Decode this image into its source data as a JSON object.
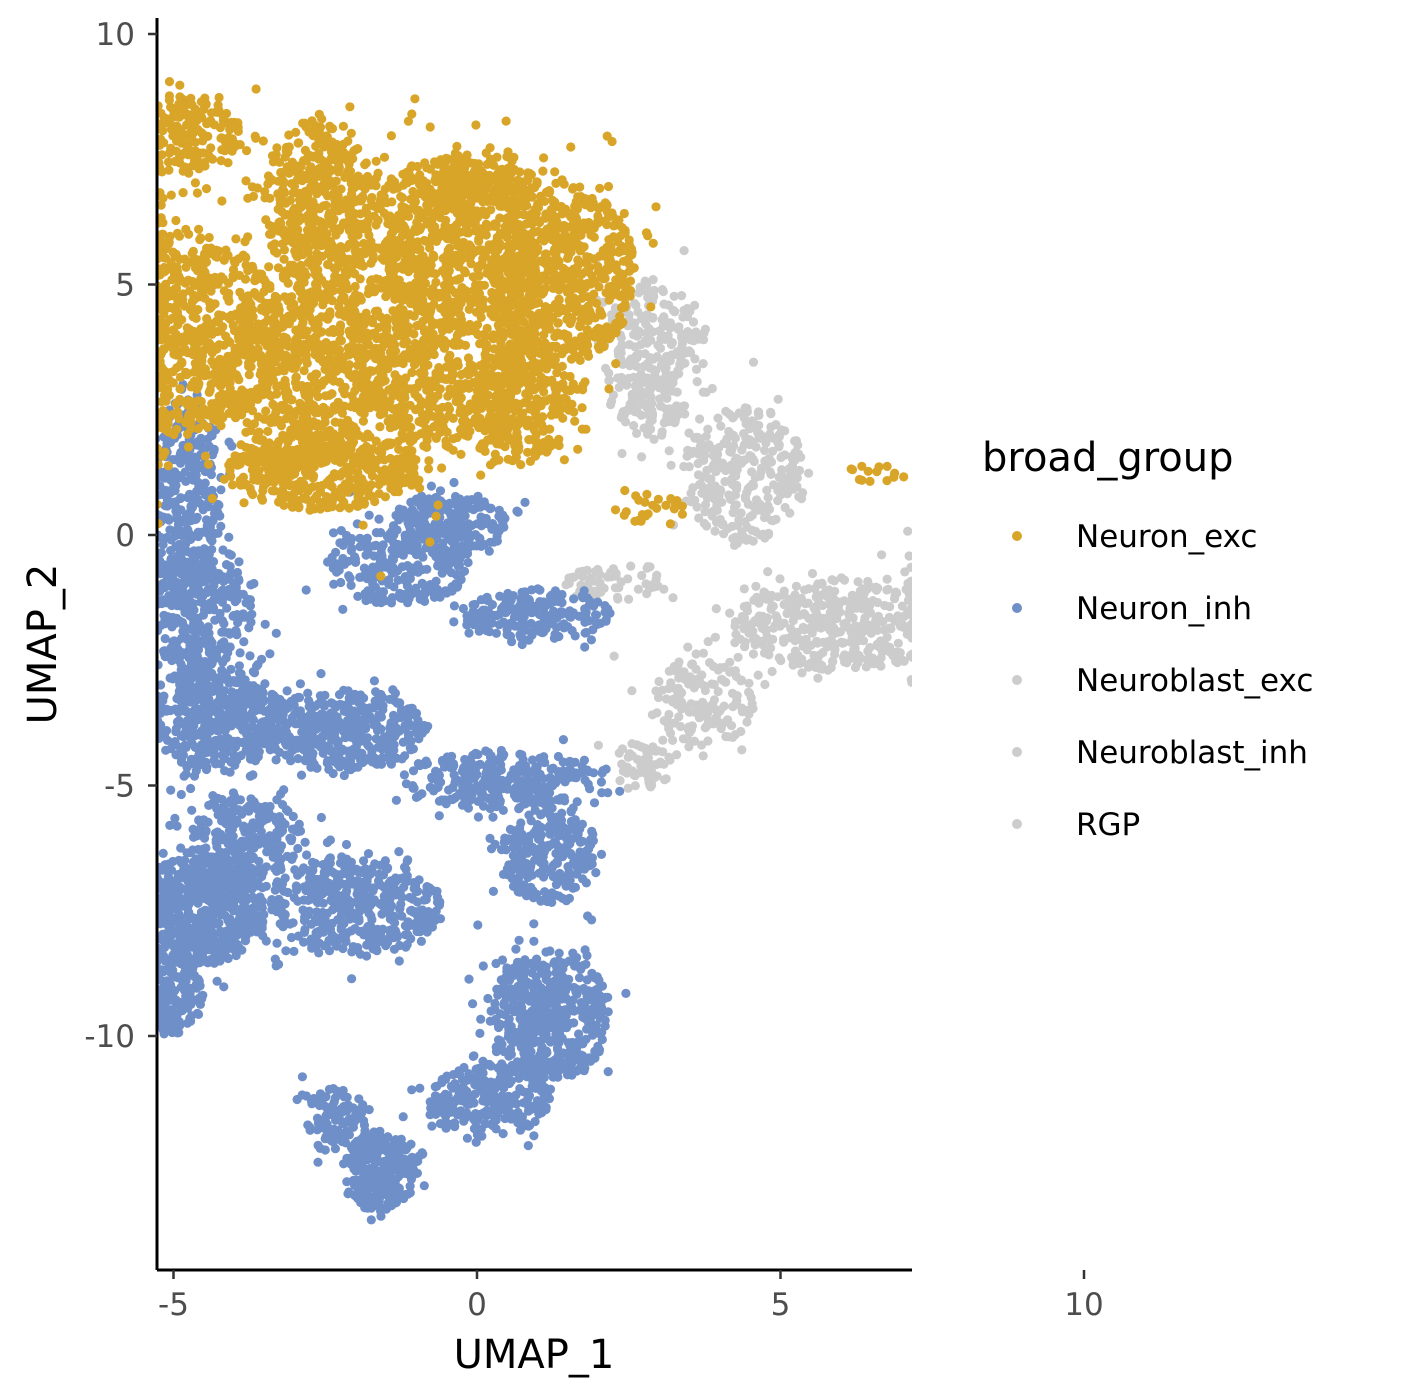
{
  "chart_data": {
    "type": "scatter",
    "title": "",
    "xlabel": "UMAP_1",
    "ylabel": "UMAP_2",
    "xlim": [
      -10.5,
      14.2
    ],
    "ylim": [
      -14.6,
      10.3
    ],
    "x_ticks": [
      -10,
      -5,
      0,
      5,
      10
    ],
    "y_ticks": [
      -10,
      -5,
      0,
      5,
      10
    ],
    "x_tick_labels": [
      "-10",
      "-5",
      "0",
      "5",
      "10"
    ],
    "y_tick_labels": [
      "-10",
      "-5",
      "0",
      "5",
      "10"
    ],
    "grid": false,
    "legend": {
      "title": "broad_group",
      "placement": "right",
      "entries": [
        {
          "name": "Neuron_exc",
          "color": "#D8A528"
        },
        {
          "name": "Neuron_inh",
          "color": "#6F8FC8"
        },
        {
          "name": "Neuroblast_exc",
          "color": "#CCCCCC"
        },
        {
          "name": "Neuroblast_inh",
          "color": "#CCCCCC"
        },
        {
          "name": "RGP",
          "color": "#CCCCCC"
        }
      ]
    },
    "series": [
      {
        "name": "Neuron_exc",
        "color": "#D8A528",
        "regions": [
          {
            "cx": -7.5,
            "cy": 5.5,
            "rx": 2.4,
            "ry": 2.9,
            "n": 1900
          },
          {
            "cx": -4.8,
            "cy": 4.0,
            "rx": 1.6,
            "ry": 2.0,
            "n": 800
          },
          {
            "cx": -2.6,
            "cy": 6.5,
            "rx": 0.9,
            "ry": 1.9,
            "n": 450
          },
          {
            "cx": -2.8,
            "cy": 3.2,
            "rx": 1.3,
            "ry": 1.7,
            "n": 600
          },
          {
            "cx": -0.6,
            "cy": 4.6,
            "rx": 1.6,
            "ry": 2.9,
            "n": 1200
          },
          {
            "cx": 1.4,
            "cy": 5.2,
            "rx": 1.2,
            "ry": 1.8,
            "n": 650
          },
          {
            "cx": 0.7,
            "cy": 2.6,
            "rx": 1.0,
            "ry": 1.2,
            "n": 300
          },
          {
            "cx": -2.5,
            "cy": 1.3,
            "rx": 1.6,
            "ry": 0.8,
            "n": 400
          },
          {
            "cx": -6.1,
            "cy": 1.2,
            "rx": 0.7,
            "ry": 1.0,
            "n": 200
          },
          {
            "cx": -7.5,
            "cy": 7.3,
            "rx": 1.3,
            "ry": 0.9,
            "n": 300
          },
          {
            "cx": -4.8,
            "cy": 8.0,
            "rx": 0.9,
            "ry": 0.8,
            "n": 200
          },
          {
            "cx": 0.0,
            "cy": 7.0,
            "rx": 1.0,
            "ry": 0.6,
            "n": 200
          },
          {
            "cx": 2.8,
            "cy": 0.6,
            "rx": 0.7,
            "ry": 0.35,
            "n": 25
          },
          {
            "cx": 6.6,
            "cy": 1.25,
            "rx": 0.5,
            "ry": 0.2,
            "n": 14
          }
        ]
      },
      {
        "name": "Neuron_inh",
        "color": "#6F8FC8",
        "regions": [
          {
            "cx": -4.8,
            "cy": 0.8,
            "rx": 0.6,
            "ry": 2.0,
            "n": 350
          },
          {
            "cx": -4.6,
            "cy": -1.5,
            "rx": 0.9,
            "ry": 1.2,
            "n": 350
          },
          {
            "cx": -4.3,
            "cy": -3.6,
            "rx": 1.1,
            "ry": 1.1,
            "n": 500
          },
          {
            "cx": -2.2,
            "cy": -3.9,
            "rx": 1.4,
            "ry": 0.8,
            "n": 400
          },
          {
            "cx": -1.3,
            "cy": -0.6,
            "rx": 1.2,
            "ry": 0.8,
            "n": 250
          },
          {
            "cx": 1.0,
            "cy": -1.6,
            "rx": 1.2,
            "ry": 0.5,
            "n": 200
          },
          {
            "cx": -0.5,
            "cy": 0.2,
            "rx": 1.0,
            "ry": 0.6,
            "n": 200
          },
          {
            "cx": 0.4,
            "cy": -4.9,
            "rx": 1.6,
            "ry": 0.6,
            "n": 300
          },
          {
            "cx": 1.2,
            "cy": -6.4,
            "rx": 0.8,
            "ry": 1.0,
            "n": 250
          },
          {
            "cx": -4.6,
            "cy": -7.5,
            "rx": 1.1,
            "ry": 1.1,
            "n": 650
          },
          {
            "cx": -2.0,
            "cy": -7.4,
            "rx": 1.4,
            "ry": 1.0,
            "n": 450
          },
          {
            "cx": -3.8,
            "cy": -6.0,
            "rx": 0.9,
            "ry": 0.9,
            "n": 250
          },
          {
            "cx": -5.0,
            "cy": -9.2,
            "rx": 0.5,
            "ry": 0.8,
            "n": 150
          },
          {
            "cx": 1.2,
            "cy": -9.6,
            "rx": 1.0,
            "ry": 1.3,
            "n": 500
          },
          {
            "cx": 0.2,
            "cy": -11.3,
            "rx": 1.0,
            "ry": 0.7,
            "n": 250
          },
          {
            "cx": -1.6,
            "cy": -12.7,
            "rx": 0.6,
            "ry": 0.8,
            "n": 300
          },
          {
            "cx": -2.3,
            "cy": -11.7,
            "rx": 0.5,
            "ry": 0.7,
            "n": 100
          }
        ]
      },
      {
        "name": "Neuroblast_exc",
        "color": "#CCCCCC",
        "regions": [
          {
            "cx": 2.9,
            "cy": 3.5,
            "rx": 0.8,
            "ry": 1.6,
            "n": 300
          },
          {
            "cx": 4.4,
            "cy": 1.2,
            "rx": 1.0,
            "ry": 1.4,
            "n": 300
          },
          {
            "cx": 2.3,
            "cy": -0.9,
            "rx": 0.8,
            "ry": 0.4,
            "n": 60
          }
        ]
      },
      {
        "name": "Neuroblast_inh",
        "color": "#CCCCCC",
        "regions": [
          {
            "cx": 6.0,
            "cy": -1.8,
            "rx": 1.8,
            "ry": 0.9,
            "n": 450
          },
          {
            "cx": 3.7,
            "cy": -3.4,
            "rx": 0.9,
            "ry": 0.9,
            "n": 150
          },
          {
            "cx": 2.7,
            "cy": -4.6,
            "rx": 0.5,
            "ry": 0.5,
            "n": 60
          }
        ]
      },
      {
        "name": "RGP",
        "color": "#CCCCCC",
        "regions": [
          {
            "cx": 11.2,
            "cy": 0.6,
            "rx": 1.8,
            "ry": 1.7,
            "n": 900
          },
          {
            "cx": 9.0,
            "cy": -1.2,
            "rx": 1.6,
            "ry": 1.4,
            "n": 700
          },
          {
            "cx": 10.8,
            "cy": -1.9,
            "rx": 1.1,
            "ry": 0.9,
            "n": 250
          },
          {
            "cx": 8.3,
            "cy": -3.0,
            "rx": 0.9,
            "ry": 0.6,
            "n": 150
          }
        ]
      }
    ]
  }
}
